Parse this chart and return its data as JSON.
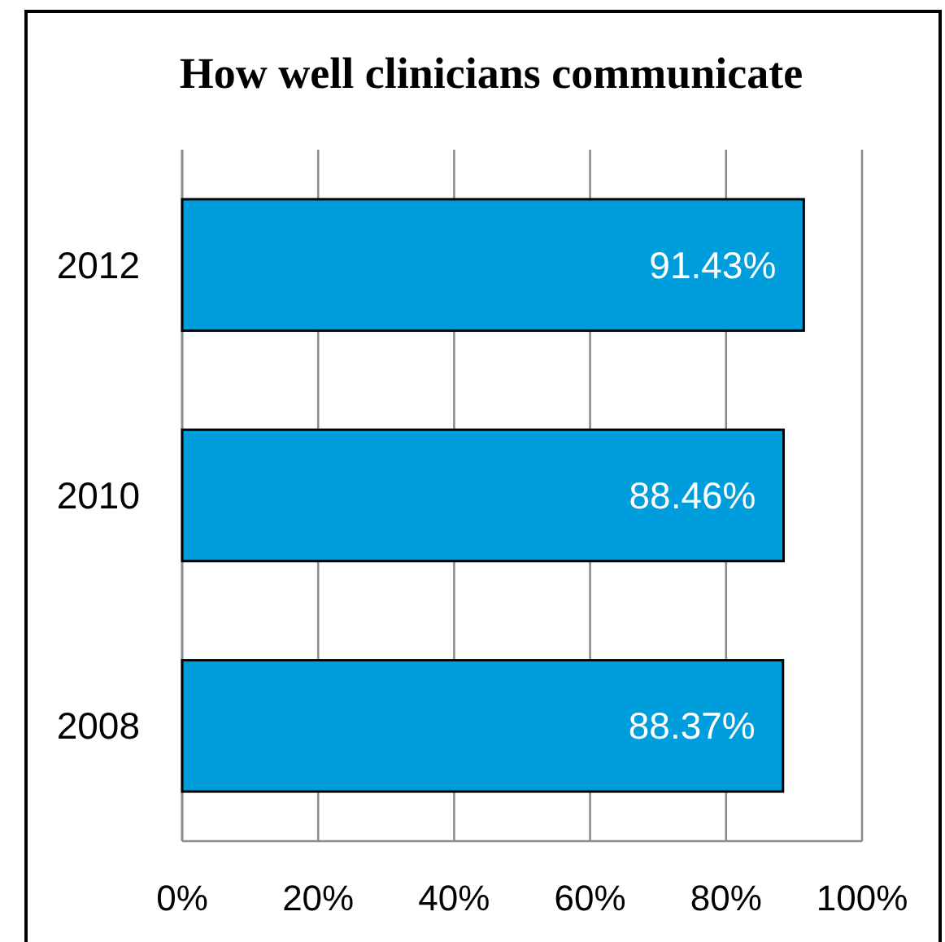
{
  "chart_data": {
    "type": "bar",
    "orientation": "horizontal",
    "title": "How well clinicians communicate",
    "categories": [
      "2012",
      "2010",
      "2008"
    ],
    "values": [
      91.43,
      88.46,
      88.37
    ],
    "color": "#009ddc",
    "value_labels": [
      "91.43%",
      "88.46%",
      "88.37%"
    ],
    "xlim": [
      0,
      100
    ],
    "xticks": [
      {
        "value": 0,
        "label": "0%"
      },
      {
        "value": 20,
        "label": "20%"
      },
      {
        "value": 40,
        "label": "40%"
      },
      {
        "value": 60,
        "label": "60%"
      },
      {
        "value": 80,
        "label": "80%"
      },
      {
        "value": 100,
        "label": "100%"
      }
    ],
    "grid": "x"
  }
}
